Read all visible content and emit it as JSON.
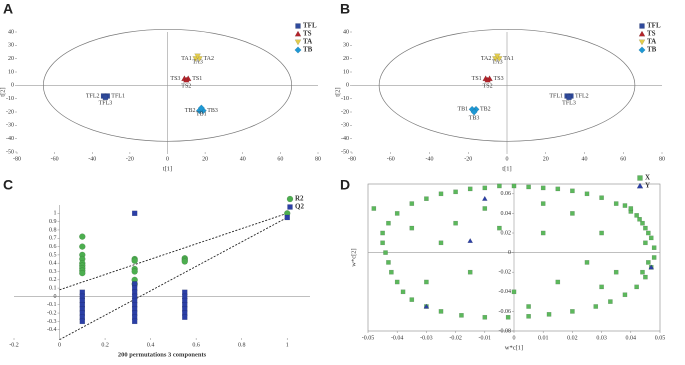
{
  "chart_data": [
    {
      "type": "scatter",
      "panel": "A",
      "xlabel": "t[1]",
      "ylabel": "t[2]",
      "xlim": [
        -80,
        80
      ],
      "xticks": [
        -80,
        -60,
        -40,
        -20,
        0,
        20,
        40,
        60,
        80
      ],
      "ylim": [
        -50,
        40
      ],
      "yticks": [
        -50,
        -40,
        -30,
        -20,
        -10,
        0,
        10,
        20,
        30,
        40
      ],
      "ellipse": [
        66,
        42
      ],
      "legend": "upper right",
      "series": [
        {
          "name": "TFL",
          "color": "#2f4a9c",
          "marker": "square",
          "x": [
            -32,
            -34,
            -33
          ],
          "values": [
            -8,
            -8,
            -9
          ],
          "point_labels": [
            "TFL1",
            "TFL2",
            "TFL3"
          ]
        },
        {
          "name": "TS",
          "color": "#b3232a",
          "marker": "triangle",
          "x": [
            11,
            9,
            10
          ],
          "values": [
            5,
            5,
            4
          ],
          "point_labels": [
            "TS1",
            "TS3",
            "TS2"
          ]
        },
        {
          "name": "TA",
          "color": "#e2cc4c",
          "marker": "triangle-down",
          "x": [
            17,
            15,
            16
          ],
          "values": [
            20,
            20,
            22
          ],
          "point_labels": [
            "TA2",
            "TA1",
            "TA3"
          ]
        },
        {
          "name": "TB",
          "color": "#1e98d4",
          "marker": "diamond",
          "x": [
            19,
            17,
            18
          ],
          "values": [
            -19,
            -19,
            -17
          ],
          "point_labels": [
            "TB3",
            "TB2",
            "TB1"
          ]
        }
      ]
    },
    {
      "type": "scatter",
      "panel": "B",
      "xlabel": "t[1]",
      "ylabel": "t[2]",
      "xlim": [
        -80,
        80
      ],
      "xticks": [
        -80,
        -60,
        -40,
        -20,
        0,
        20,
        40,
        60,
        80
      ],
      "ylim": [
        -50,
        40
      ],
      "yticks": [
        -50,
        -40,
        -30,
        -20,
        -10,
        0,
        10,
        20,
        30,
        40
      ],
      "ellipse": [
        66,
        42
      ],
      "legend": "upper right",
      "series": [
        {
          "name": "TFL",
          "color": "#2f4a9c",
          "marker": "square",
          "x": [
            33,
            31,
            32
          ],
          "values": [
            -8,
            -8,
            -9
          ],
          "point_labels": [
            "TFL2",
            "TFL1",
            "TFL3"
          ]
        },
        {
          "name": "TS",
          "color": "#b3232a",
          "marker": "triangle",
          "x": [
            -9,
            -11,
            -10
          ],
          "values": [
            5,
            5,
            4
          ],
          "point_labels": [
            "TS3",
            "TS1",
            "TS2"
          ]
        },
        {
          "name": "TA",
          "color": "#e2cc4c",
          "marker": "triangle-down",
          "x": [
            -4,
            -6,
            -5
          ],
          "values": [
            20,
            20,
            22
          ],
          "point_labels": [
            "TA1",
            "TA2",
            "TA3"
          ]
        },
        {
          "name": "TB",
          "color": "#1e98d4",
          "marker": "diamond",
          "x": [
            -16,
            -18,
            -17
          ],
          "values": [
            -18,
            -18,
            -20
          ],
          "point_labels": [
            "TB2",
            "TB1",
            "TB3"
          ]
        }
      ]
    },
    {
      "type": "scatter",
      "panel": "C",
      "xlabel": "200 permutations 3 components",
      "xlim": [
        -0.2,
        1.1
      ],
      "xticks": [
        -0.2,
        0,
        0.2,
        0.4,
        0.6,
        0.8,
        1
      ],
      "ylim": [
        -0.5,
        1.1
      ],
      "yticks": [
        -0.4,
        -0.3,
        -0.2,
        -0.1,
        0,
        0.1,
        0.2,
        0.3,
        0.4,
        0.5,
        0.6,
        0.7,
        0.8,
        0.9,
        1
      ],
      "legend": "upper right",
      "series": [
        {
          "name": "R2",
          "color": "#4cae4f",
          "marker": "circle",
          "x": [
            0.1,
            0.1,
            0.1,
            0.1,
            0.1,
            0.1,
            0.1,
            0.1,
            0.1,
            0.33,
            0.33,
            0.33,
            0.33,
            0.33,
            0.33,
            0.55,
            0.55,
            0.55,
            1
          ],
          "values": [
            0.72,
            0.6,
            0.5,
            0.45,
            0.4,
            0.37,
            0.34,
            0.31,
            0.28,
            0.45,
            0.43,
            0.33,
            0.3,
            0.2,
            0.15,
            0.46,
            0.44,
            0.42,
            1
          ]
        },
        {
          "name": "Q2",
          "color": "#2b3fa6",
          "marker": "square",
          "x": [
            0.1,
            0.1,
            0.1,
            0.1,
            0.1,
            0.1,
            0.1,
            0.1,
            0.33,
            0.33,
            0.33,
            0.33,
            0.33,
            0.33,
            0.33,
            0.33,
            0.33,
            0.33,
            0.33,
            0.55,
            0.55,
            0.55,
            0.55,
            0.55,
            0.55,
            0.55,
            1
          ],
          "values": [
            0.05,
            0,
            -0.05,
            -0.1,
            -0.15,
            -0.2,
            -0.25,
            -0.3,
            1,
            0.15,
            0.1,
            0.05,
            0,
            -0.05,
            -0.1,
            -0.15,
            -0.2,
            -0.25,
            -0.3,
            0.05,
            0,
            -0.05,
            -0.1,
            -0.15,
            -0.2,
            -0.25,
            0.95
          ]
        }
      ],
      "fit_lines": [
        {
          "x": [
            0,
            1
          ],
          "values": [
            0.08,
            1
          ]
        },
        {
          "x": [
            0,
            1
          ],
          "values": [
            -0.52,
            0.95
          ]
        }
      ]
    },
    {
      "type": "scatter",
      "panel": "D",
      "xlabel": "w*c[1]",
      "ylabel": "w*c[2]",
      "xlim": [
        -0.05,
        0.05
      ],
      "xticks": [
        -0.05,
        -0.04,
        -0.03,
        -0.02,
        -0.01,
        0,
        0.01,
        0.02,
        0.03,
        0.04,
        0.05
      ],
      "ylim": [
        -0.08,
        0.07
      ],
      "yticks": [
        -0.08,
        -0.06,
        -0.04,
        -0.02,
        0,
        0.02,
        0.04,
        0.06
      ],
      "legend": "upper right",
      "series": [
        {
          "name": "X",
          "color": "#5cb85c",
          "marker": "square",
          "x": [
            -0.04,
            -0.035,
            -0.03,
            -0.025,
            -0.02,
            -0.015,
            -0.01,
            -0.005,
            0,
            0.005,
            0.01,
            0.015,
            0.02,
            0.025,
            0.03,
            0.035,
            0.04,
            0.043,
            0.045,
            0.047,
            0.048,
            0.048,
            0.047,
            0.045,
            0.042,
            0.038,
            0.033,
            0.028,
            0.02,
            0.012,
            0.005,
            -0.002,
            -0.01,
            -0.018,
            -0.025,
            -0.03,
            -0.035,
            -0.038,
            -0.04,
            -0.042,
            -0.043,
            -0.044,
            -0.045,
            -0.045,
            -0.043,
            0.044,
            0.046,
            0.045,
            0.046,
            0.044,
            0.042,
            0.04,
            0.038,
            -0.02,
            -0.01,
            0.01,
            0.02,
            0.03,
            0.025,
            0.015,
            0,
            -0.015,
            -0.025,
            -0.03,
            0.01,
            -0.005,
            0.035,
            0.03,
            -0.048,
            -0.035,
            0.005
          ],
          "values": [
            0.04,
            0.05,
            0.055,
            0.06,
            0.062,
            0.065,
            0.066,
            0.068,
            0.068,
            0.067,
            0.066,
            0.065,
            0.063,
            0.06,
            0.056,
            0.05,
            0.042,
            0.034,
            0.025,
            0.015,
            0.005,
            -0.005,
            -0.015,
            -0.025,
            -0.035,
            -0.043,
            -0.05,
            -0.055,
            -0.06,
            -0.063,
            -0.065,
            -0.066,
            -0.066,
            -0.064,
            -0.06,
            -0.055,
            -0.048,
            -0.04,
            -0.03,
            -0.02,
            -0.01,
            0,
            0.01,
            0.02,
            0.03,
            0.03,
            0.02,
            0.01,
            -0.01,
            -0.02,
            0.038,
            0.045,
            0.048,
            0.03,
            0.045,
            0.05,
            0.04,
            0.02,
            -0.01,
            -0.03,
            -0.04,
            -0.02,
            0.01,
            -0.03,
            0.02,
            0.025,
            -0.02,
            -0.035,
            0.045,
            0.025,
            -0.055
          ]
        },
        {
          "name": "Y",
          "color": "#2b3fa6",
          "marker": "triangle",
          "x": [
            -0.015,
            -0.01,
            0.047,
            -0.03
          ],
          "values": [
            0.012,
            0.055,
            -0.015,
            -0.055
          ]
        }
      ]
    }
  ]
}
